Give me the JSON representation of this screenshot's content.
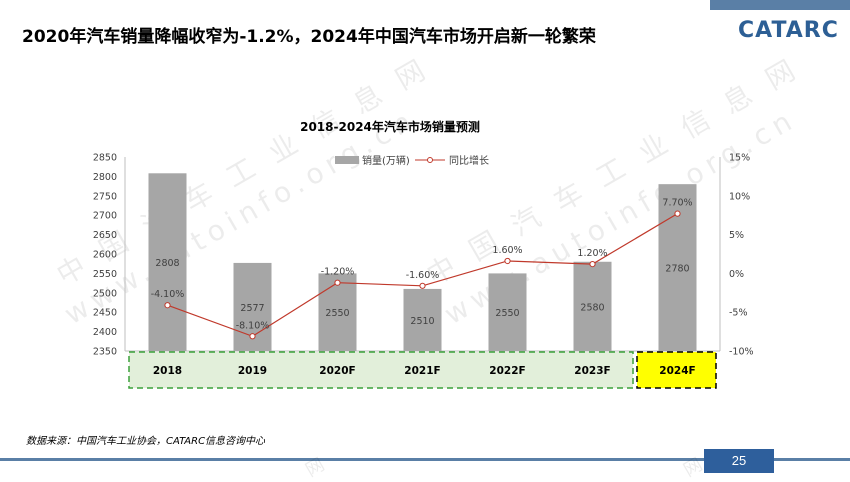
{
  "slide": {
    "title": "2020年汽车销量降幅收窄为-1.2%，2024年中国汽车市场开启新一轮繁荣",
    "logo": "CATARC",
    "source": "数据来源：中国汽车工业协会，CATARC信息咨询中心",
    "page_number": "25",
    "watermark_cn": "中 国 汽 车 工 业 信 息 网",
    "watermark_url": "www.autoinfo.org.cn",
    "watermark_short": "网",
    "colors": {
      "bar": "#a6a6a6",
      "line": "#c0392b",
      "brand": "#2e5f9c",
      "category_fill": "#e2efda",
      "category_border": "#3aa03a",
      "highlight_fill": "#ffff00"
    }
  },
  "chart_data": {
    "type": "bar",
    "title": "2018-2024年汽车市场销量预测",
    "categories": [
      "2018",
      "2019",
      "2020F",
      "2021F",
      "2022F",
      "2023F",
      "2024F"
    ],
    "highlight_category": "2024F",
    "series": [
      {
        "name": "销量(万辆)",
        "type": "bar",
        "axis": "left",
        "values": [
          2808,
          2577,
          2550,
          2510,
          2550,
          2580,
          2780
        ],
        "labels": [
          "2808",
          "2577",
          "2550",
          "2510",
          "2550",
          "2580",
          "2780"
        ]
      },
      {
        "name": "同比增长",
        "type": "line",
        "axis": "right",
        "values": [
          -4.1,
          -8.1,
          -1.2,
          -1.6,
          1.6,
          1.2,
          7.7
        ],
        "labels": [
          "-4.10%",
          "-8.10%",
          "-1.20%",
          "-1.60%",
          "1.60%",
          "1.20%",
          "7.70%"
        ]
      }
    ],
    "y_left": {
      "min": 2350,
      "max": 2850,
      "ticks": [
        "2350",
        "2400",
        "2450",
        "2500",
        "2550",
        "2600",
        "2650",
        "2700",
        "2750",
        "2800",
        "2850"
      ]
    },
    "y_right": {
      "min": -10,
      "max": 15,
      "ticks": [
        "-10%",
        "-5%",
        "0%",
        "5%",
        "10%",
        "15%"
      ]
    },
    "legend_position": "top-center",
    "grid": false
  }
}
